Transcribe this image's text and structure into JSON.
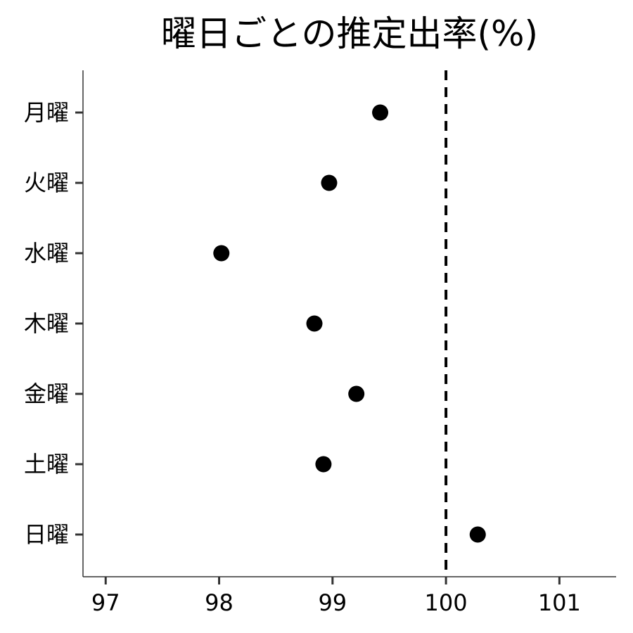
{
  "chart_data": {
    "type": "scatter",
    "title": "曜日ごとの推定出率(%)",
    "xlabel": "",
    "ylabel": "",
    "xlim": [
      96.8,
      101.5
    ],
    "x_ticks": [
      97,
      98,
      99,
      100,
      101
    ],
    "categories": [
      "月曜",
      "火曜",
      "水曜",
      "木曜",
      "金曜",
      "土曜",
      "日曜"
    ],
    "values": [
      99.42,
      98.97,
      98.02,
      98.84,
      99.21,
      98.92,
      100.28
    ],
    "reference_line": {
      "x": 100,
      "style": "dashed",
      "color": "#000000"
    },
    "point_color": "#000000",
    "grid": false,
    "legend": "none"
  }
}
